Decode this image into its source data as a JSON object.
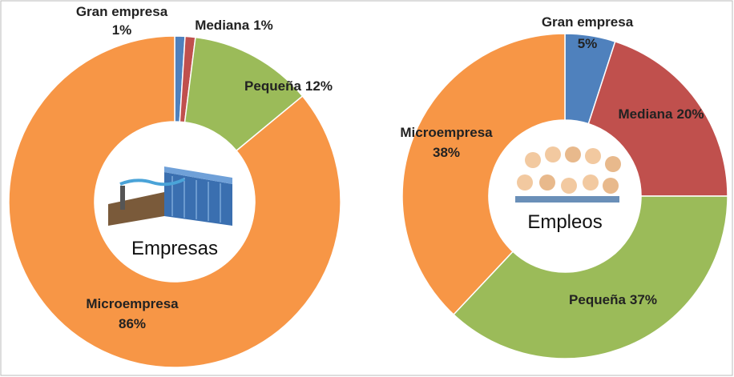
{
  "chart_data": [
    {
      "type": "donut",
      "center_label": "Empresas",
      "categories": [
        "Gran empresa",
        "Mediana",
        "Pequeña",
        "Microempresa"
      ],
      "values": [
        1,
        1,
        12,
        86
      ],
      "value_labels": [
        "1%",
        "1%",
        "12%",
        "86%"
      ],
      "colors": [
        "#4f81bd",
        "#c0504d",
        "#9bbb59",
        "#f79646"
      ]
    },
    {
      "type": "donut",
      "center_label": "Empleos",
      "categories": [
        "Gran empresa",
        "Mediana",
        "Pequeña",
        "Microempresa"
      ],
      "values": [
        5,
        20,
        37,
        38
      ],
      "value_labels": [
        "5%",
        "20%",
        "37%",
        "38%"
      ],
      "colors": [
        "#4f81bd",
        "#c0504d",
        "#9bbb59",
        "#f79646"
      ]
    }
  ]
}
